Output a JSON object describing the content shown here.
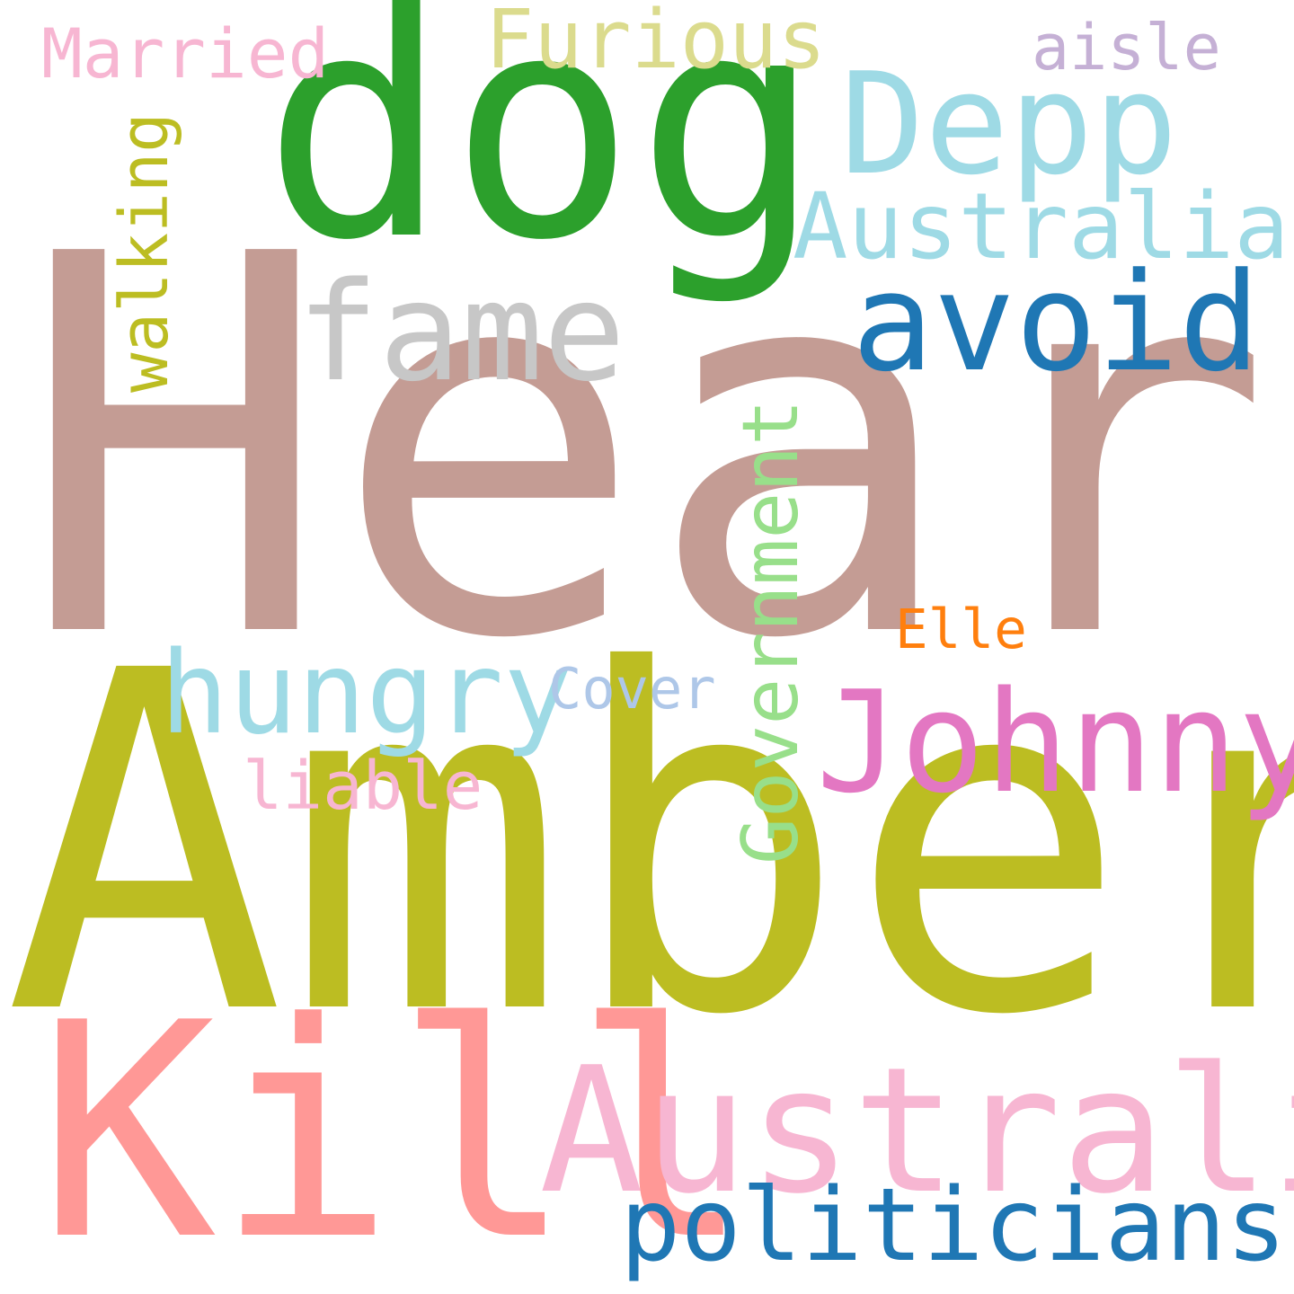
{
  "words": [
    {
      "id": "heard",
      "text": "Heard",
      "color": "#c49c94",
      "orientation": "horizontal"
    },
    {
      "id": "amber",
      "text": "Amber",
      "color": "#bcbd22",
      "orientation": "horizontal"
    },
    {
      "id": "dog",
      "text": "dog",
      "color": "#2ca02c",
      "orientation": "horizontal"
    },
    {
      "id": "kill",
      "text": "Kill",
      "color": "#ff9896",
      "orientation": "horizontal"
    },
    {
      "id": "australia",
      "text": "Australia",
      "color": "#f7b6d2",
      "orientation": "horizontal"
    },
    {
      "id": "depp",
      "text": "Depp",
      "color": "#9edae5",
      "orientation": "horizontal"
    },
    {
      "id": "johnny",
      "text": "Johnny",
      "color": "#e377c2",
      "orientation": "horizontal"
    },
    {
      "id": "avoid",
      "text": "avoid",
      "color": "#1f77b4",
      "orientation": "horizontal"
    },
    {
      "id": "fame",
      "text": "fame",
      "color": "#c7c7c7",
      "orientation": "horizontal"
    },
    {
      "id": "hungry",
      "text": "hungry",
      "color": "#9edae5",
      "orientation": "horizontal"
    },
    {
      "id": "politicians",
      "text": "politicians",
      "color": "#1f77b4",
      "orientation": "horizontal"
    },
    {
      "id": "australian",
      "text": "Australian",
      "color": "#9edae5",
      "orientation": "horizontal"
    },
    {
      "id": "government",
      "text": "Government",
      "color": "#98df8a",
      "orientation": "vertical"
    },
    {
      "id": "furious",
      "text": "Furious",
      "color": "#dbdb8d",
      "orientation": "horizontal"
    },
    {
      "id": "married",
      "text": "Married",
      "color": "#f7b6d2",
      "orientation": "horizontal"
    },
    {
      "id": "walking",
      "text": "walking",
      "color": "#bcbd22",
      "orientation": "vertical"
    },
    {
      "id": "aisle",
      "text": "aisle",
      "color": "#c5b0d5",
      "orientation": "horizontal"
    },
    {
      "id": "elle",
      "text": "Elle",
      "color": "#ff7f0e",
      "orientation": "horizontal"
    },
    {
      "id": "cover",
      "text": "Cover",
      "color": "#aec7e8",
      "orientation": "horizontal"
    },
    {
      "id": "liable",
      "text": "liable",
      "color": "#f7b6d2",
      "orientation": "horizontal"
    }
  ]
}
